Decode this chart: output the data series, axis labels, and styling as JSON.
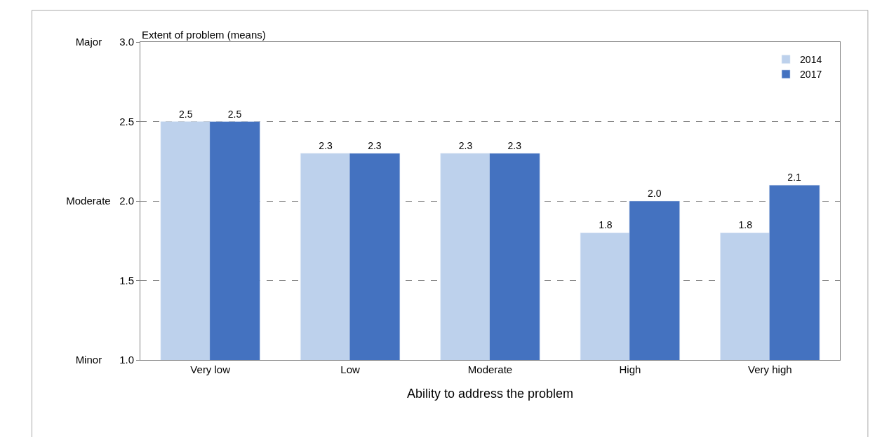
{
  "chart_data": {
    "type": "bar",
    "ylabel": "Extent of problem (means)",
    "xlabel": "Ability to address the problem",
    "categories": [
      "Very low",
      "Low",
      "Moderate",
      "High",
      "Very high"
    ],
    "series": [
      {
        "name": "2014",
        "color": "#bdd1ec",
        "values": [
          2.5,
          2.3,
          2.3,
          1.8,
          1.8
        ],
        "value_labels": [
          "2.5",
          "2.3",
          "2.3",
          "1.8",
          "1.8"
        ]
      },
      {
        "name": "2017",
        "color": "#4472c0",
        "values": [
          2.5,
          2.3,
          2.3,
          2.0,
          2.1
        ],
        "value_labels": [
          "2.5",
          "2.3",
          "2.3",
          "2.0",
          "2.1"
        ]
      }
    ],
    "ylim": [
      1.0,
      3.0
    ],
    "yticks": [
      {
        "value": 1.0,
        "label": "Minor      1.0"
      },
      1.5,
      {
        "value": 2.0,
        "label": "Moderate   2.0"
      },
      2.5,
      {
        "value": 3.0,
        "label": "Major      3.0"
      }
    ],
    "grid": "y",
    "line_style": "dashed",
    "legend": "top right"
  }
}
